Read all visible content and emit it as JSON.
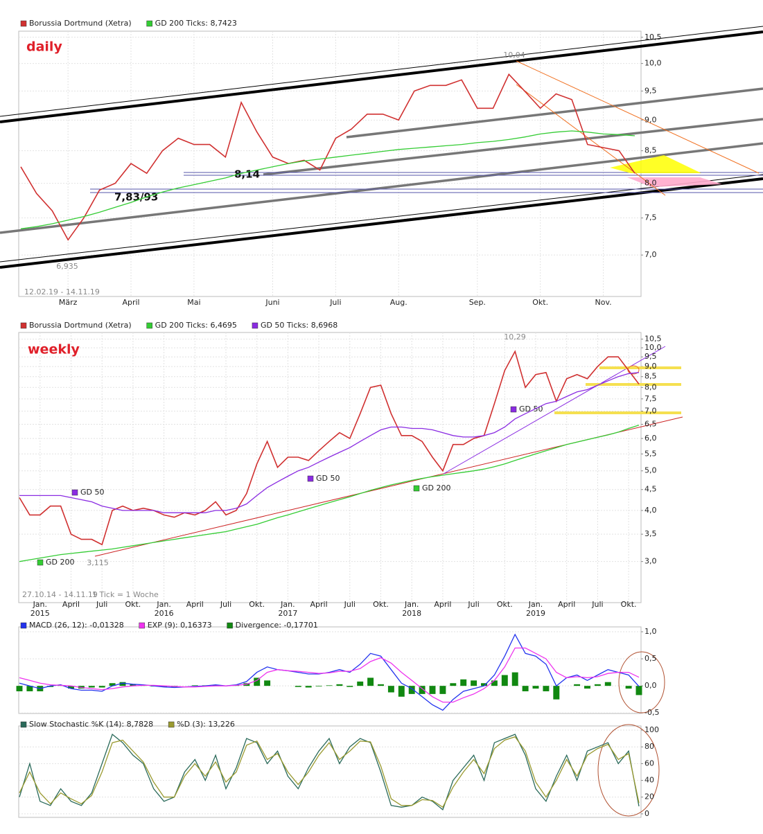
{
  "chart_data": [
    {
      "type": "line",
      "log_scale": true,
      "grid": true,
      "annotations": [
        "daily",
        "10,04",
        "6,935",
        "8,14",
        "7,83/93",
        "12.02.19 - 14.11.19"
      ],
      "categories": [
        null,
        null,
        null,
        "März",
        null,
        null,
        null,
        "April",
        null,
        null,
        null,
        "Mai",
        null,
        null,
        null,
        null,
        "Juni",
        null,
        null,
        null,
        "Juli",
        null,
        null,
        null,
        "Aug.",
        null,
        null,
        null,
        null,
        "Sep.",
        null,
        null,
        null,
        "Okt.",
        null,
        null,
        null,
        "Nov.",
        null,
        null
      ],
      "series": [
        {
          "name": "Borussia Dortmund (Xetra)",
          "color": "#d03030",
          "values": [
            8.25,
            7.85,
            7.6,
            7.2,
            7.5,
            7.9,
            8.0,
            8.3,
            8.15,
            8.5,
            8.7,
            8.6,
            8.6,
            8.4,
            9.3,
            8.8,
            8.4,
            8.3,
            8.35,
            8.2,
            8.7,
            8.85,
            9.1,
            9.1,
            9.0,
            9.5,
            9.6,
            9.6,
            9.7,
            9.2,
            9.2,
            9.8,
            9.5,
            9.2,
            9.45,
            9.35,
            8.6,
            8.55,
            8.5,
            8.15
          ]
        },
        {
          "name": "GD 200 Ticks: 8,7423",
          "color": "#33cc33",
          "values": [
            7.35,
            7.38,
            7.42,
            7.47,
            7.52,
            7.58,
            7.65,
            7.72,
            7.8,
            7.87,
            7.93,
            7.98,
            8.03,
            8.08,
            8.15,
            8.2,
            8.25,
            8.3,
            8.34,
            8.37,
            8.4,
            8.43,
            8.46,
            8.49,
            8.52,
            8.54,
            8.56,
            8.58,
            8.6,
            8.63,
            8.65,
            8.68,
            8.72,
            8.77,
            8.8,
            8.82,
            8.8,
            8.77,
            8.76,
            8.74
          ]
        }
      ],
      "ylim": [
        6.48,
        10.62
      ],
      "yticks": [
        {
          "value": 10.5,
          "label": "10,5"
        },
        {
          "value": 10.0,
          "label": "10,0"
        },
        {
          "value": 9.5,
          "label": "9,5"
        },
        {
          "value": 9.0,
          "label": "9,0"
        },
        {
          "value": 8.5,
          "label": "8,5"
        },
        {
          "value": 8.0,
          "label": "8,0"
        },
        {
          "value": 7.5,
          "label": "7,5"
        },
        {
          "value": 7.0,
          "label": "7,0"
        }
      ]
    },
    {
      "type": "line",
      "log_scale": true,
      "grid": true,
      "annotations": [
        "weekly",
        "10,29",
        "3,115",
        "GD 50",
        "GD 50",
        "GD 50",
        "GD 200",
        "GD 200",
        "27.10.14 - 14.11.19",
        "1 Tick = 1 Woche"
      ],
      "categories": [
        null,
        null,
        "Jan.",
        null,
        null,
        "April",
        null,
        null,
        "Juli",
        null,
        null,
        "Okt.",
        null,
        null,
        "Jan.",
        null,
        null,
        "April",
        null,
        null,
        "Juli",
        null,
        null,
        "Okt.",
        null,
        null,
        "Jan.",
        null,
        null,
        "April",
        null,
        null,
        "Juli",
        null,
        null,
        "Okt.",
        null,
        null,
        "Jan.",
        null,
        null,
        "April",
        null,
        null,
        "Juli",
        null,
        null,
        "Okt.",
        null,
        null,
        "Jan.",
        null,
        null,
        "April",
        null,
        null,
        "Juli",
        null,
        null,
        "Okt.",
        null
      ],
      "x_years": [
        null,
        null,
        "2015",
        null,
        null,
        null,
        null,
        null,
        null,
        null,
        null,
        null,
        null,
        null,
        "2016",
        null,
        null,
        null,
        null,
        null,
        null,
        null,
        null,
        null,
        null,
        null,
        "2017",
        null,
        null,
        null,
        null,
        null,
        null,
        null,
        null,
        null,
        null,
        null,
        "2018",
        null,
        null,
        null,
        null,
        null,
        null,
        null,
        null,
        null,
        null,
        null,
        "2019",
        null,
        null,
        null,
        null,
        null,
        null,
        null,
        null,
        null,
        null
      ],
      "series": [
        {
          "name": "Borussia Dortmund (Xetra)",
          "color": "#d03030",
          "values": [
            4.3,
            3.9,
            3.9,
            4.1,
            4.1,
            3.5,
            3.4,
            3.4,
            3.3,
            4.0,
            4.1,
            4.0,
            4.05,
            4.0,
            3.9,
            3.85,
            3.95,
            3.9,
            4.0,
            4.2,
            3.9,
            4.0,
            4.4,
            5.2,
            5.9,
            5.1,
            5.4,
            5.4,
            5.3,
            5.6,
            5.9,
            6.2,
            6.0,
            6.9,
            8.0,
            8.1,
            6.9,
            6.1,
            6.1,
            5.9,
            5.4,
            5.0,
            5.8,
            5.8,
            6.0,
            6.1,
            7.3,
            8.8,
            9.8,
            8.0,
            8.6,
            8.7,
            7.4,
            8.4,
            8.6,
            8.4,
            9.0,
            9.5,
            9.5,
            8.8,
            8.15
          ]
        },
        {
          "name": "GD 200 Ticks: 6,4695",
          "color": "#33cc33",
          "values": [
            3.0,
            3.03,
            3.06,
            3.09,
            3.12,
            3.14,
            3.16,
            3.18,
            3.2,
            3.22,
            3.25,
            3.28,
            3.31,
            3.34,
            3.37,
            3.4,
            3.43,
            3.46,
            3.49,
            3.52,
            3.55,
            3.6,
            3.65,
            3.7,
            3.77,
            3.84,
            3.9,
            3.97,
            4.04,
            4.11,
            4.18,
            4.25,
            4.32,
            4.4,
            4.48,
            4.55,
            4.62,
            4.68,
            4.74,
            4.79,
            4.84,
            4.88,
            4.92,
            4.96,
            5.0,
            5.05,
            5.12,
            5.2,
            5.3,
            5.4,
            5.5,
            5.6,
            5.7,
            5.8,
            5.88,
            5.96,
            6.04,
            6.12,
            6.22,
            6.35,
            6.47
          ]
        },
        {
          "name": "GD 50 Ticks: 8,6968",
          "color": "#8a2be2",
          "values": [
            4.35,
            4.35,
            4.35,
            4.35,
            4.35,
            4.3,
            4.25,
            4.2,
            4.1,
            4.05,
            4.0,
            4.0,
            4.0,
            4.0,
            3.95,
            3.95,
            3.95,
            3.95,
            3.95,
            4.0,
            4.0,
            4.05,
            4.15,
            4.35,
            4.55,
            4.7,
            4.85,
            5.0,
            5.1,
            5.25,
            5.4,
            5.55,
            5.7,
            5.9,
            6.1,
            6.3,
            6.4,
            6.4,
            6.35,
            6.35,
            6.3,
            6.2,
            6.1,
            6.05,
            6.05,
            6.1,
            6.2,
            6.4,
            6.7,
            6.9,
            7.1,
            7.3,
            7.4,
            7.6,
            7.8,
            7.9,
            8.1,
            8.3,
            8.5,
            8.65,
            8.7
          ]
        }
      ],
      "ylim": [
        2.38,
        10.9
      ],
      "yticks": [
        {
          "value": 10.5,
          "label": "10,5"
        },
        {
          "value": 10.0,
          "label": "10,0"
        },
        {
          "value": 9.5,
          "label": "9,5"
        },
        {
          "value": 9.0,
          "label": "9,0"
        },
        {
          "value": 8.5,
          "label": "8,5"
        },
        {
          "value": 8.0,
          "label": "8,0"
        },
        {
          "value": 7.5,
          "label": "7,5"
        },
        {
          "value": 7.0,
          "label": "7,0"
        },
        {
          "value": 6.5,
          "label": "6,5"
        },
        {
          "value": 6.0,
          "label": "6,0"
        },
        {
          "value": 5.5,
          "label": "5,5"
        },
        {
          "value": 5.0,
          "label": "5,0"
        },
        {
          "value": 4.5,
          "label": "4,5"
        },
        {
          "value": 4.0,
          "label": "4,0"
        },
        {
          "value": 3.5,
          "label": "3,5"
        },
        {
          "value": 3.0,
          "label": "3,0"
        }
      ]
    },
    {
      "type": "line",
      "grid": true,
      "series": [
        {
          "name": "MACD (26, 12): -0,01328",
          "color": "#2233ee",
          "values": [
            0.05,
            0.0,
            -0.05,
            0.0,
            0.02,
            -0.05,
            -0.08,
            -0.08,
            -0.1,
            0.0,
            0.05,
            0.03,
            0.02,
            0.0,
            -0.02,
            -0.03,
            -0.02,
            -0.01,
            0.0,
            0.02,
            0.0,
            0.02,
            0.08,
            0.25,
            0.35,
            0.3,
            0.28,
            0.25,
            0.22,
            0.22,
            0.25,
            0.3,
            0.25,
            0.4,
            0.6,
            0.55,
            0.3,
            0.05,
            -0.05,
            -0.2,
            -0.35,
            -0.45,
            -0.25,
            -0.1,
            -0.05,
            0.0,
            0.2,
            0.55,
            0.95,
            0.6,
            0.55,
            0.4,
            0.0,
            0.15,
            0.2,
            0.1,
            0.2,
            0.3,
            0.25,
            0.2,
            -0.01
          ]
        },
        {
          "name": "EXP (9): 0,16373",
          "color": "#ee33ee",
          "values": [
            0.15,
            0.1,
            0.05,
            0.02,
            0.01,
            0.0,
            -0.03,
            -0.05,
            -0.07,
            -0.05,
            -0.02,
            0.0,
            0.01,
            0.01,
            0.0,
            -0.01,
            -0.02,
            -0.02,
            -0.01,
            0.0,
            0.0,
            0.01,
            0.03,
            0.1,
            0.25,
            0.3,
            0.28,
            0.27,
            0.25,
            0.23,
            0.24,
            0.27,
            0.27,
            0.32,
            0.45,
            0.52,
            0.42,
            0.25,
            0.1,
            -0.05,
            -0.2,
            -0.3,
            -0.3,
            -0.22,
            -0.15,
            -0.05,
            0.1,
            0.35,
            0.7,
            0.7,
            0.6,
            0.5,
            0.25,
            0.15,
            0.17,
            0.15,
            0.17,
            0.23,
            0.25,
            0.25,
            0.16
          ]
        },
        {
          "name": "Divergence: -0,17701",
          "color": "#118811",
          "type": "bar",
          "values": [
            -0.1,
            -0.1,
            -0.1,
            -0.02,
            0.01,
            -0.05,
            -0.05,
            -0.03,
            -0.03,
            0.05,
            0.07,
            0.03,
            0.01,
            -0.01,
            -0.02,
            -0.02,
            0.0,
            0.01,
            0.01,
            0.02,
            0.0,
            0.01,
            0.05,
            0.15,
            0.1,
            0.0,
            0.0,
            -0.02,
            -0.03,
            -0.01,
            0.01,
            0.03,
            -0.02,
            0.08,
            0.15,
            0.03,
            -0.12,
            -0.2,
            -0.15,
            -0.15,
            -0.15,
            -0.15,
            0.05,
            0.12,
            0.1,
            0.05,
            0.1,
            0.2,
            0.25,
            -0.1,
            -0.05,
            -0.1,
            -0.25,
            0.0,
            0.03,
            -0.05,
            0.03,
            0.07,
            0.0,
            -0.05,
            -0.17
          ]
        }
      ],
      "ylim": [
        -0.51,
        1.09
      ],
      "yticks": [
        {
          "value": 1.0,
          "label": "1,0"
        },
        {
          "value": 0.5,
          "label": "0,5"
        },
        {
          "value": 0.0,
          "label": "0,0"
        },
        {
          "value": -0.5,
          "label": "-0,5"
        }
      ]
    },
    {
      "type": "line",
      "grid": true,
      "series": [
        {
          "name": "Slow Stochastic %K (14): 8,7828",
          "color": "#2a6a5a",
          "values": [
            20,
            60,
            15,
            10,
            30,
            15,
            10,
            25,
            60,
            95,
            85,
            70,
            60,
            30,
            15,
            20,
            50,
            65,
            40,
            70,
            30,
            55,
            90,
            85,
            60,
            75,
            45,
            30,
            55,
            75,
            90,
            60,
            80,
            90,
            85,
            50,
            10,
            8,
            10,
            20,
            15,
            5,
            40,
            55,
            70,
            40,
            85,
            90,
            95,
            70,
            30,
            15,
            45,
            70,
            40,
            75,
            80,
            85,
            60,
            75,
            9
          ]
        },
        {
          "name": "%D (3): 13,226",
          "color": "#9a9a30",
          "values": [
            25,
            50,
            25,
            12,
            25,
            18,
            12,
            22,
            50,
            85,
            88,
            75,
            62,
            38,
            20,
            20,
            45,
            60,
            45,
            62,
            38,
            50,
            82,
            87,
            65,
            72,
            50,
            35,
            50,
            70,
            85,
            65,
            75,
            87,
            86,
            57,
            18,
            10,
            10,
            17,
            16,
            8,
            32,
            50,
            65,
            48,
            78,
            88,
            92,
            75,
            38,
            20,
            40,
            65,
            45,
            70,
            78,
            83,
            65,
            72,
            13
          ]
        }
      ],
      "ylim": [
        -4.2,
        105
      ],
      "yticks": [
        100,
        80,
        60,
        40,
        20,
        0
      ]
    }
  ]
}
